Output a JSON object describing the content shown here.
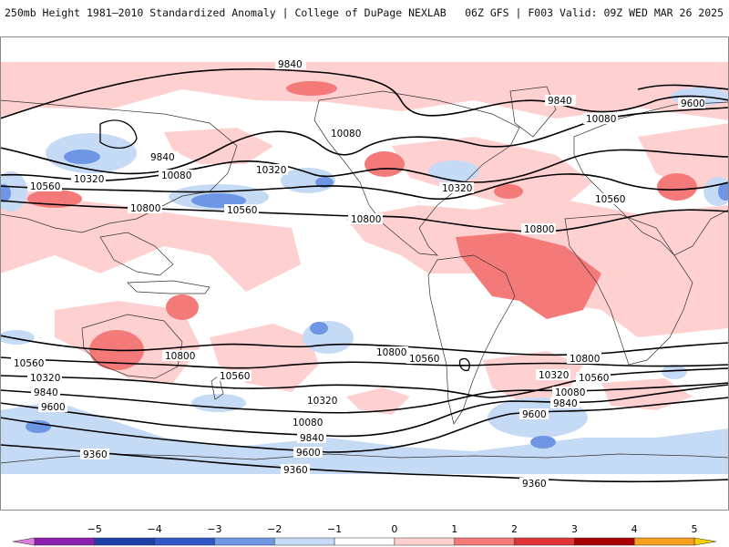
{
  "header": {
    "left": "250mb Height 1981–2010 Standardized Anomaly | College of DuPage NEXLAB",
    "right": "06Z GFS | F003 Valid: 09Z WED MAR 26 2025"
  },
  "contour_labels": {
    "l9840a": "9840",
    "l9840b": "9840",
    "l9840c": "9840",
    "l9600a": "9600",
    "l10080a": "10080",
    "l10080b": "10080",
    "l10080c": "10080",
    "l10320a": "10320",
    "l10320b": "10320",
    "l10320c": "10320",
    "l10560a": "10560",
    "l10560b": "10560",
    "l10560c": "10560",
    "l10800a": "10800",
    "l10800b": "10800",
    "l10800c": "10800",
    "s10800a": "10800",
    "s10800b": "10800",
    "s10800c": "10800",
    "s10560a": "10560",
    "s10560b": "10560",
    "s10560c": "10560",
    "s10560d": "10560",
    "s10320a": "10320",
    "s10320b": "10320",
    "s10320c": "10320",
    "s10080a": "10080",
    "s10080b": "10080",
    "s9840a": "9840",
    "s9840b": "9840",
    "s9840c": "9840",
    "s9600a": "9600",
    "s9600b": "9600",
    "s9600c": "9600",
    "s9360a": "9360",
    "s9360b": "9360",
    "s9360c": "9360"
  },
  "colorbar": {
    "ticks": [
      "−5",
      "−4",
      "−3",
      "−2",
      "−1",
      "0",
      "1",
      "2",
      "3",
      "4",
      "5"
    ],
    "colors": [
      "#e07ee0",
      "#8b1fb0",
      "#1c3fa8",
      "#2f57c8",
      "#6e96e4",
      "#c5daf5",
      "#ffffff",
      "#ffd0d0",
      "#f47a7a",
      "#e03434",
      "#a80000",
      "#f7a020",
      "#f4d000"
    ]
  }
}
